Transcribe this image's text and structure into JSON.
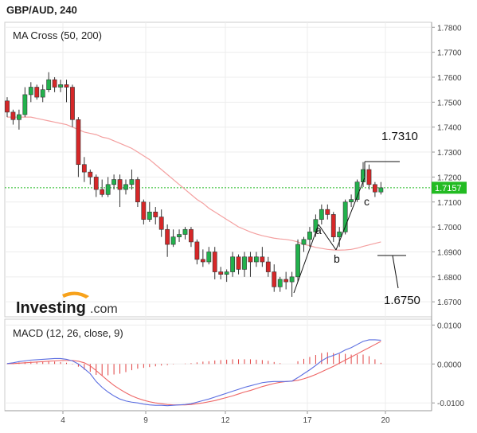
{
  "header": {
    "title": "GBP/AUD, 240"
  },
  "branding": {
    "logo_text": "Investing",
    "logo_suffix": ".com",
    "accent": "#f7a21b"
  },
  "colors": {
    "bull": "#22b14c",
    "bear": "#d62728",
    "ma": "#f4a0a0",
    "price_line": "#22bb22",
    "macd_line": "#5b6ee1",
    "signal_line": "#ee6666",
    "hist": "#e04040",
    "grid": "#ededed"
  },
  "chart_data": [
    {
      "type": "candlestick",
      "title": "MA Cross (50, 200)",
      "x_tick_labels": [
        "4",
        "9",
        "12",
        "17",
        "20"
      ],
      "ylim": [
        1.664,
        1.782
      ],
      "y_ticks": [
        1.67,
        1.68,
        1.69,
        1.7,
        1.71,
        1.72,
        1.73,
        1.74,
        1.75,
        1.76,
        1.77,
        1.78
      ],
      "y_tick_labels": [
        "1.6700",
        "1.6800",
        "1.6900",
        "1.7000",
        "1.7100",
        "1.7200",
        "1.7300",
        "1.7400",
        "1.7500",
        "1.7600",
        "1.7700",
        "1.7800"
      ],
      "grid": true,
      "current_price": 1.7157,
      "current_price_label": "1.7157",
      "candles": [
        [
          1.7505,
          1.752,
          1.744,
          1.746
        ],
        [
          1.746,
          1.747,
          1.741,
          1.743
        ],
        [
          1.743,
          1.747,
          1.739,
          1.745
        ],
        [
          1.745,
          1.756,
          1.744,
          1.753
        ],
        [
          1.753,
          1.758,
          1.75,
          1.756
        ],
        [
          1.756,
          1.757,
          1.751,
          1.752
        ],
        [
          1.752,
          1.757,
          1.75,
          1.755
        ],
        [
          1.755,
          1.762,
          1.754,
          1.759
        ],
        [
          1.759,
          1.76,
          1.754,
          1.756
        ],
        [
          1.756,
          1.759,
          1.754,
          1.757
        ],
        [
          1.757,
          1.759,
          1.75,
          1.756
        ],
        [
          1.756,
          1.757,
          1.74,
          1.743
        ],
        [
          1.743,
          1.744,
          1.72,
          1.725
        ],
        [
          1.725,
          1.728,
          1.718,
          1.722
        ],
        [
          1.722,
          1.723,
          1.717,
          1.72
        ],
        [
          1.72,
          1.721,
          1.712,
          1.715
        ],
        [
          1.715,
          1.719,
          1.712,
          1.713
        ],
        [
          1.713,
          1.72,
          1.712,
          1.717
        ],
        [
          1.717,
          1.721,
          1.715,
          1.719
        ],
        [
          1.719,
          1.721,
          1.708,
          1.715
        ],
        [
          1.715,
          1.719,
          1.713,
          1.717
        ],
        [
          1.717,
          1.723,
          1.715,
          1.719
        ],
        [
          1.719,
          1.72,
          1.708,
          1.71
        ],
        [
          1.71,
          1.711,
          1.701,
          1.703
        ],
        [
          1.703,
          1.71,
          1.702,
          1.706
        ],
        [
          1.706,
          1.708,
          1.701,
          1.704
        ],
        [
          1.704,
          1.707,
          1.696,
          1.699
        ],
        [
          1.699,
          1.701,
          1.688,
          1.693
        ],
        [
          1.693,
          1.699,
          1.692,
          1.696
        ],
        [
          1.696,
          1.699,
          1.694,
          1.697
        ],
        [
          1.697,
          1.7,
          1.695,
          1.699
        ],
        [
          1.699,
          1.7,
          1.692,
          1.694
        ],
        [
          1.694,
          1.695,
          1.685,
          1.687
        ],
        [
          1.687,
          1.691,
          1.684,
          1.686
        ],
        [
          1.686,
          1.692,
          1.685,
          1.69
        ],
        [
          1.69,
          1.692,
          1.679,
          1.682
        ],
        [
          1.682,
          1.684,
          1.679,
          1.681
        ],
        [
          1.681,
          1.683,
          1.678,
          1.682
        ],
        [
          1.682,
          1.69,
          1.68,
          1.688
        ],
        [
          1.688,
          1.689,
          1.681,
          1.683
        ],
        [
          1.683,
          1.69,
          1.68,
          1.688
        ],
        [
          1.688,
          1.69,
          1.68,
          1.686
        ],
        [
          1.686,
          1.69,
          1.684,
          1.688
        ],
        [
          1.688,
          1.692,
          1.684,
          1.686
        ],
        [
          1.686,
          1.688,
          1.68,
          1.682
        ],
        [
          1.682,
          1.685,
          1.674,
          1.676
        ],
        [
          1.676,
          1.68,
          1.674,
          1.679
        ],
        [
          1.679,
          1.682,
          1.675,
          1.678
        ],
        [
          1.678,
          1.682,
          1.672,
          1.68
        ],
        [
          1.68,
          1.695,
          1.678,
          1.693
        ],
        [
          1.693,
          1.696,
          1.69,
          1.695
        ],
        [
          1.695,
          1.7,
          1.692,
          1.698
        ],
        [
          1.698,
          1.705,
          1.696,
          1.703
        ],
        [
          1.703,
          1.709,
          1.701,
          1.707
        ],
        [
          1.707,
          1.709,
          1.703,
          1.705
        ],
        [
          1.705,
          1.706,
          1.694,
          1.696
        ],
        [
          1.696,
          1.7,
          1.692,
          1.698
        ],
        [
          1.698,
          1.711,
          1.697,
          1.71
        ],
        [
          1.71,
          1.713,
          1.708,
          1.711
        ],
        [
          1.711,
          1.719,
          1.71,
          1.718
        ],
        [
          1.718,
          1.726,
          1.716,
          1.723
        ],
        [
          1.723,
          1.725,
          1.715,
          1.717
        ],
        [
          1.717,
          1.718,
          1.712,
          1.714
        ],
        [
          1.714,
          1.718,
          1.713,
          1.7157
        ]
      ],
      "series": [
        {
          "name": "MA (50)",
          "values": [
            1.744,
            1.744,
            1.744,
            1.744,
            1.744,
            1.7435,
            1.743,
            1.7425,
            1.742,
            1.7415,
            1.741,
            1.74,
            1.739,
            1.738,
            1.7375,
            1.737,
            1.736,
            1.7355,
            1.7345,
            1.7335,
            1.7325,
            1.7315,
            1.73,
            1.7285,
            1.727,
            1.725,
            1.723,
            1.721,
            1.719,
            1.717,
            1.715,
            1.713,
            1.711,
            1.7095,
            1.7075,
            1.706,
            1.7045,
            1.703,
            1.7015,
            1.7,
            1.699,
            1.698,
            1.6972,
            1.6965,
            1.696,
            1.6955,
            1.6952,
            1.695,
            1.6946,
            1.694,
            1.693,
            1.6925,
            1.6918,
            1.6914,
            1.691,
            1.6908,
            1.6907,
            1.6908,
            1.691,
            1.6915,
            1.6922,
            1.6928,
            1.6934,
            1.694
          ]
        }
      ],
      "annotations": [
        {
          "text": "a",
          "price": 1.698
        },
        {
          "text": "b",
          "price": 1.689
        },
        {
          "text": "c",
          "price": 1.712
        },
        {
          "text": "1.7310",
          "price": 1.731
        },
        {
          "text": "1.6750",
          "price": 1.675
        }
      ]
    },
    {
      "type": "line",
      "title": "MACD (12, 26, close, 9)",
      "ylim": [
        -0.012,
        0.0115
      ],
      "y_ticks": [
        0.01,
        0.0,
        -0.01
      ],
      "y_tick_labels": [
        "0.0100",
        "0.0000",
        "-0.0100"
      ],
      "series": [
        {
          "name": "MACD",
          "values": [
            0.0001,
            0.0003,
            0.0006,
            0.0008,
            0.001,
            0.0011,
            0.0012,
            0.0013,
            0.0014,
            0.0014,
            0.0012,
            0.0008,
            0.0,
            -0.0012,
            -0.0025,
            -0.0045,
            -0.006,
            -0.0072,
            -0.0082,
            -0.009,
            -0.0095,
            -0.0098,
            -0.01,
            -0.0103,
            -0.0105,
            -0.0106,
            -0.0106,
            -0.0107,
            -0.0106,
            -0.0105,
            -0.0104,
            -0.0102,
            -0.0098,
            -0.0094,
            -0.009,
            -0.0085,
            -0.008,
            -0.0075,
            -0.007,
            -0.0065,
            -0.006,
            -0.0056,
            -0.0052,
            -0.0048,
            -0.0046,
            -0.0045,
            -0.0045,
            -0.0045,
            -0.0044,
            -0.0035,
            -0.0025,
            -0.0015,
            -0.0004,
            0.0008,
            0.0017,
            0.0022,
            0.0028,
            0.0036,
            0.0042,
            0.005,
            0.0058,
            0.0062,
            0.0062,
            0.0061
          ]
        },
        {
          "name": "Signal",
          "values": [
            0.0001,
            0.0001,
            0.0002,
            0.0003,
            0.0004,
            0.0005,
            0.0006,
            0.0007,
            0.0008,
            0.0009,
            0.0009,
            0.0009,
            0.0007,
            0.0003,
            -0.0005,
            -0.0017,
            -0.003,
            -0.0043,
            -0.0055,
            -0.0065,
            -0.0074,
            -0.0082,
            -0.0088,
            -0.0093,
            -0.0097,
            -0.01,
            -0.0102,
            -0.0104,
            -0.0105,
            -0.0105,
            -0.0105,
            -0.0104,
            -0.0102,
            -0.01,
            -0.0097,
            -0.0094,
            -0.009,
            -0.0086,
            -0.0082,
            -0.0077,
            -0.0072,
            -0.0068,
            -0.0063,
            -0.0058,
            -0.0054,
            -0.005,
            -0.0047,
            -0.0045,
            -0.0044,
            -0.0042,
            -0.0038,
            -0.0033,
            -0.0027,
            -0.002,
            -0.0013,
            -0.0006,
            0.0002,
            0.001,
            0.0018,
            0.0026,
            0.0034,
            0.0042,
            0.005,
            0.0058
          ]
        }
      ],
      "histogram": [
        0.0001,
        0.0002,
        0.0004,
        0.0005,
        0.0006,
        0.0006,
        0.0006,
        0.0006,
        0.0006,
        0.0005,
        0.0003,
        -0.0001,
        -0.0007,
        -0.0015,
        -0.002,
        -0.0028,
        -0.003,
        -0.0029,
        -0.0027,
        -0.0025,
        -0.0021,
        -0.0016,
        -0.0012,
        -0.001,
        -0.0008,
        -0.0006,
        -0.0004,
        -0.0003,
        -0.0001,
        0.0,
        0.0001,
        0.0002,
        0.0004,
        0.0006,
        0.0007,
        0.0009,
        0.001,
        0.0011,
        0.0012,
        0.0012,
        0.0012,
        0.0012,
        0.0011,
        0.001,
        0.0008,
        0.0005,
        0.0002,
        0.0,
        0.0,
        0.0007,
        0.0013,
        0.0018,
        0.0023,
        0.0028,
        0.003,
        0.0028,
        0.0026,
        0.0026,
        0.0024,
        0.0024,
        0.0024,
        0.002,
        0.0012,
        0.0003
      ]
    }
  ]
}
